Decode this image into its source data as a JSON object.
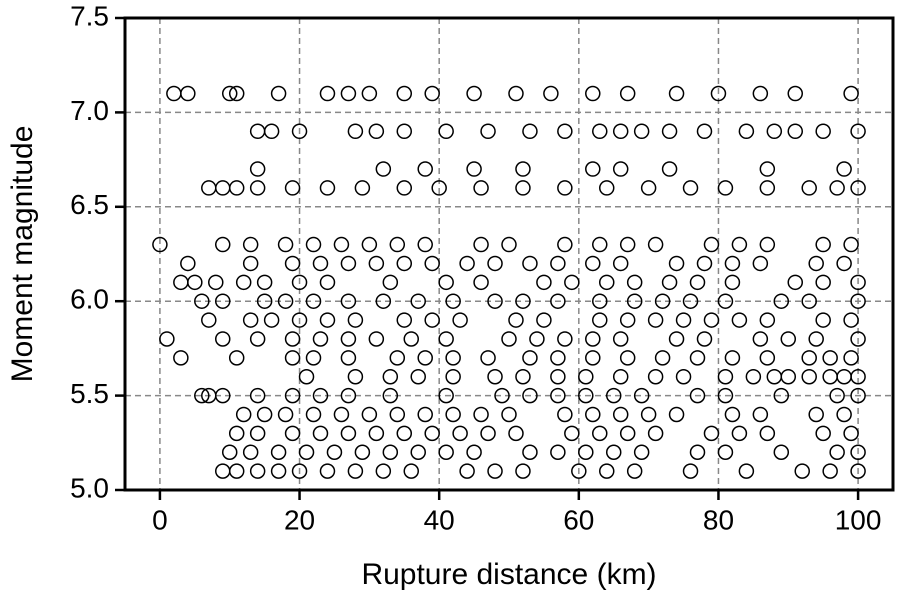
{
  "chart_data": {
    "type": "scatter",
    "xlabel": "Rupture distance (km)",
    "ylabel": "Moment magnitude",
    "xlim": [
      -5,
      105
    ],
    "ylim": [
      5,
      7.5
    ],
    "xticks": [
      0,
      20,
      40,
      60,
      80,
      100
    ],
    "yticks": [
      {
        "value": 5,
        "label": "5.0"
      },
      5.5,
      {
        "value": 6,
        "label": "6.0"
      },
      6.5,
      {
        "value": 7,
        "label": "7.0"
      },
      7.5
    ],
    "grid": true,
    "color": "#000000",
    "x": [
      2,
      4,
      10,
      11,
      17,
      24,
      27,
      30,
      35,
      39,
      45,
      51,
      56,
      62,
      67,
      74,
      80,
      86,
      91,
      99,
      14,
      16,
      20,
      28,
      31,
      35,
      41,
      47,
      53,
      58,
      63,
      66,
      69,
      73,
      78,
      84,
      88,
      91,
      95,
      100,
      14,
      32,
      38,
      45,
      52,
      62,
      66,
      73,
      87,
      98,
      7,
      9,
      11,
      14,
      19,
      24,
      29,
      35,
      40,
      46,
      52,
      58,
      64,
      70,
      76,
      81,
      87,
      93,
      97,
      100,
      0,
      9,
      13,
      18,
      22,
      26,
      30,
      34,
      38,
      46,
      50,
      58,
      63,
      67,
      71,
      79,
      83,
      87,
      95,
      99,
      4,
      13,
      19,
      23,
      27,
      31,
      35,
      39,
      44,
      48,
      53,
      57,
      62,
      66,
      74,
      78,
      82,
      86,
      94,
      98,
      3,
      5,
      8,
      12,
      15,
      20,
      24,
      33,
      41,
      46,
      55,
      59,
      64,
      68,
      73,
      77,
      82,
      91,
      95,
      100,
      6,
      9,
      15,
      18,
      22,
      27,
      32,
      37,
      42,
      48,
      52,
      57,
      63,
      68,
      72,
      76,
      81,
      89,
      93,
      100,
      7,
      13,
      16,
      20,
      24,
      28,
      35,
      39,
      43,
      51,
      55,
      63,
      67,
      71,
      75,
      79,
      83,
      87,
      95,
      99,
      1,
      9,
      14,
      19,
      23,
      27,
      31,
      36,
      41,
      50,
      54,
      58,
      62,
      66,
      74,
      78,
      86,
      90,
      94,
      100,
      3,
      11,
      19,
      22,
      27,
      34,
      38,
      42,
      47,
      53,
      57,
      62,
      67,
      72,
      77,
      82,
      87,
      93,
      96,
      99,
      21,
      28,
      33,
      37,
      42,
      48,
      52,
      57,
      61,
      66,
      71,
      75,
      81,
      85,
      88,
      90,
      93,
      96,
      98,
      100,
      6,
      7,
      9,
      14,
      19,
      23,
      27,
      33,
      41,
      49,
      53,
      57,
      61,
      65,
      69,
      77,
      81,
      89,
      97,
      100,
      12,
      15,
      18,
      22,
      26,
      30,
      34,
      38,
      42,
      46,
      50,
      58,
      62,
      66,
      70,
      74,
      82,
      86,
      94,
      98,
      11,
      14,
      19,
      23,
      27,
      31,
      35,
      39,
      43,
      47,
      51,
      59,
      63,
      67,
      71,
      79,
      83,
      87,
      95,
      99,
      10,
      13,
      17,
      21,
      25,
      29,
      33,
      37,
      41,
      45,
      53,
      57,
      61,
      65,
      69,
      77,
      81,
      89,
      97,
      100,
      9,
      11,
      14,
      17,
      20,
      24,
      28,
      32,
      36,
      44,
      48,
      52,
      60,
      64,
      68,
      76,
      84,
      92,
      96,
      100
    ],
    "values": [
      7.1,
      7.1,
      7.1,
      7.1,
      7.1,
      7.1,
      7.1,
      7.1,
      7.1,
      7.1,
      7.1,
      7.1,
      7.1,
      7.1,
      7.1,
      7.1,
      7.1,
      7.1,
      7.1,
      7.1,
      6.9,
      6.9,
      6.9,
      6.9,
      6.9,
      6.9,
      6.9,
      6.9,
      6.9,
      6.9,
      6.9,
      6.9,
      6.9,
      6.9,
      6.9,
      6.9,
      6.9,
      6.9,
      6.9,
      6.9,
      6.7,
      6.7,
      6.7,
      6.7,
      6.7,
      6.7,
      6.7,
      6.7,
      6.7,
      6.7,
      6.6,
      6.6,
      6.6,
      6.6,
      6.6,
      6.6,
      6.6,
      6.6,
      6.6,
      6.6,
      6.6,
      6.6,
      6.6,
      6.6,
      6.6,
      6.6,
      6.6,
      6.6,
      6.6,
      6.6,
      6.3,
      6.3,
      6.3,
      6.3,
      6.3,
      6.3,
      6.3,
      6.3,
      6.3,
      6.3,
      6.3,
      6.3,
      6.3,
      6.3,
      6.3,
      6.3,
      6.3,
      6.3,
      6.3,
      6.3,
      6.2,
      6.2,
      6.2,
      6.2,
      6.2,
      6.2,
      6.2,
      6.2,
      6.2,
      6.2,
      6.2,
      6.2,
      6.2,
      6.2,
      6.2,
      6.2,
      6.2,
      6.2,
      6.2,
      6.2,
      6.1,
      6.1,
      6.1,
      6.1,
      6.1,
      6.1,
      6.1,
      6.1,
      6.1,
      6.1,
      6.1,
      6.1,
      6.1,
      6.1,
      6.1,
      6.1,
      6.1,
      6.1,
      6.1,
      6.1,
      6.0,
      6.0,
      6.0,
      6.0,
      6.0,
      6.0,
      6.0,
      6.0,
      6.0,
      6.0,
      6.0,
      6.0,
      6.0,
      6.0,
      6.0,
      6.0,
      6.0,
      6.0,
      6.0,
      6.0,
      5.9,
      5.9,
      5.9,
      5.9,
      5.9,
      5.9,
      5.9,
      5.9,
      5.9,
      5.9,
      5.9,
      5.9,
      5.9,
      5.9,
      5.9,
      5.9,
      5.9,
      5.9,
      5.9,
      5.9,
      5.8,
      5.8,
      5.8,
      5.8,
      5.8,
      5.8,
      5.8,
      5.8,
      5.8,
      5.8,
      5.8,
      5.8,
      5.8,
      5.8,
      5.8,
      5.8,
      5.8,
      5.8,
      5.8,
      5.8,
      5.7,
      5.7,
      5.7,
      5.7,
      5.7,
      5.7,
      5.7,
      5.7,
      5.7,
      5.7,
      5.7,
      5.7,
      5.7,
      5.7,
      5.7,
      5.7,
      5.7,
      5.7,
      5.7,
      5.7,
      5.6,
      5.6,
      5.6,
      5.6,
      5.6,
      5.6,
      5.6,
      5.6,
      5.6,
      5.6,
      5.6,
      5.6,
      5.6,
      5.6,
      5.6,
      5.6,
      5.6,
      5.6,
      5.6,
      5.6,
      5.5,
      5.5,
      5.5,
      5.5,
      5.5,
      5.5,
      5.5,
      5.5,
      5.5,
      5.5,
      5.5,
      5.5,
      5.5,
      5.5,
      5.5,
      5.5,
      5.5,
      5.5,
      5.5,
      5.5,
      5.4,
      5.4,
      5.4,
      5.4,
      5.4,
      5.4,
      5.4,
      5.4,
      5.4,
      5.4,
      5.4,
      5.4,
      5.4,
      5.4,
      5.4,
      5.4,
      5.4,
      5.4,
      5.4,
      5.4,
      5.3,
      5.3,
      5.3,
      5.3,
      5.3,
      5.3,
      5.3,
      5.3,
      5.3,
      5.3,
      5.3,
      5.3,
      5.3,
      5.3,
      5.3,
      5.3,
      5.3,
      5.3,
      5.3,
      5.3,
      5.2,
      5.2,
      5.2,
      5.2,
      5.2,
      5.2,
      5.2,
      5.2,
      5.2,
      5.2,
      5.2,
      5.2,
      5.2,
      5.2,
      5.2,
      5.2,
      5.2,
      5.2,
      5.2,
      5.2,
      5.1,
      5.1,
      5.1,
      5.1,
      5.1,
      5.1,
      5.1,
      5.1,
      5.1,
      5.1,
      5.1,
      5.1,
      5.1,
      5.1,
      5.1,
      5.1,
      5.1,
      5.1,
      5.1,
      5.1
    ]
  }
}
